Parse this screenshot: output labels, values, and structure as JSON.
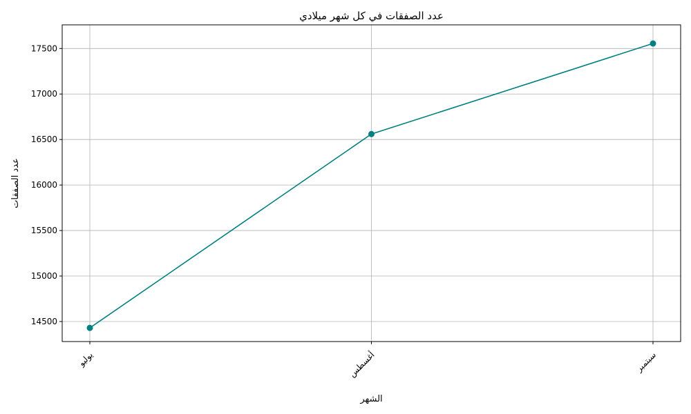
{
  "chart_data": {
    "type": "line",
    "title": "عدد الصفقات في كل شهر ميلادي",
    "xlabel": "الشهر",
    "ylabel": "عدد الصفقات",
    "categories": [
      "يوليو",
      "أغسطس",
      "سبتمبر"
    ],
    "series": [
      {
        "values": [
          14430,
          16560,
          17555
        ],
        "color": "#008080",
        "marker": "circle"
      }
    ],
    "ylim": [
      14280,
      17760
    ],
    "yticks": [
      14500,
      15000,
      15500,
      16000,
      16500,
      17000,
      17500
    ],
    "grid": true,
    "x_tick_rotation": -45
  }
}
